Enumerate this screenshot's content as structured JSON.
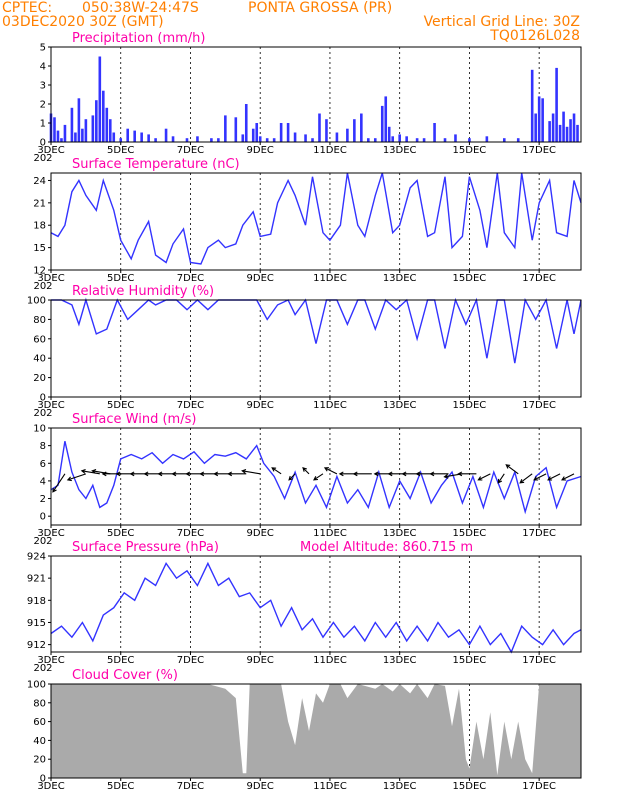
{
  "header": {
    "line1_left": "CPTEC:",
    "coords": "050:38W-24:47S",
    "location": "PONTA GROSSA (PR)",
    "date": "03DEC2020 30Z (GMT)",
    "grid_note": "Vertical Grid Line: 30Z",
    "code": "TQ0126L028"
  },
  "colors": {
    "header": "#ff7f00",
    "title": "#ff00aa",
    "series": "#3333ff",
    "cloud": "#aaaaaa"
  },
  "x_axis": {
    "start_label": "3DEC",
    "start_sub": "202",
    "ticks": [
      "5DEC",
      "7DEC",
      "9DEC",
      "11DEC",
      "13DEC",
      "15DEC",
      "17DEC"
    ],
    "tick_days": [
      5,
      7,
      9,
      11,
      13,
      15,
      17
    ],
    "range_days": [
      3,
      18.2
    ]
  },
  "chart_data": [
    {
      "type": "bar",
      "title": "Precipitation (mm/h)",
      "ylim": [
        0,
        5
      ],
      "yticks": [
        "0",
        "1",
        "2",
        "3",
        "4",
        "5"
      ],
      "x": [
        3.0,
        3.1,
        3.2,
        3.3,
        3.4,
        3.6,
        3.7,
        3.8,
        3.9,
        4.0,
        4.2,
        4.3,
        4.4,
        4.5,
        4.6,
        4.7,
        4.8,
        5.0,
        5.2,
        5.4,
        5.6,
        5.8,
        6.0,
        6.3,
        6.5,
        6.9,
        7.2,
        7.6,
        7.8,
        8.0,
        8.3,
        8.5,
        8.6,
        8.8,
        8.9,
        9.0,
        9.2,
        9.4,
        9.6,
        9.8,
        10.0,
        10.3,
        10.5,
        10.7,
        10.9,
        11.2,
        11.5,
        11.7,
        11.9,
        12.1,
        12.3,
        12.5,
        12.6,
        12.7,
        12.8,
        13.0,
        13.2,
        13.5,
        13.7,
        14.0,
        14.3,
        14.6,
        15.0,
        15.5,
        16.0,
        16.4,
        16.8,
        16.9,
        17.0,
        17.1,
        17.3,
        17.4,
        17.5,
        17.6,
        17.7,
        17.8,
        17.9,
        18.0,
        18.1
      ],
      "values": [
        1.5,
        1.3,
        0.6,
        0.2,
        0.9,
        1.8,
        0.5,
        2.3,
        0.7,
        1.2,
        1.4,
        2.2,
        4.5,
        2.7,
        1.8,
        1.2,
        0.5,
        0.2,
        0.7,
        0.6,
        0.5,
        0.4,
        0.2,
        0.7,
        0.3,
        0.2,
        0.3,
        0.2,
        0.2,
        1.4,
        1.3,
        0.4,
        2.0,
        0.7,
        1.0,
        0.3,
        0.2,
        0.2,
        1.0,
        1.0,
        0.5,
        0.4,
        0.2,
        1.5,
        1.2,
        0.5,
        0.7,
        1.2,
        1.5,
        0.2,
        0.2,
        1.9,
        2.4,
        0.8,
        0.3,
        0.4,
        0.3,
        0.2,
        0.2,
        1.0,
        0.2,
        0.4,
        0.2,
        0.3,
        0.2,
        0.2,
        3.8,
        1.5,
        2.4,
        2.3,
        1.1,
        1.5,
        3.9,
        0.9,
        1.6,
        0.8,
        1.2,
        1.5,
        0.9
      ]
    },
    {
      "type": "line",
      "title": "Surface Temperature (nC)",
      "ylim": [
        12,
        25
      ],
      "yticks": [
        "12",
        "15",
        "18",
        "21",
        "24"
      ],
      "x": [
        3.0,
        3.2,
        3.4,
        3.6,
        3.8,
        4.0,
        4.3,
        4.5,
        4.8,
        5.0,
        5.3,
        5.5,
        5.8,
        6.0,
        6.3,
        6.5,
        6.8,
        7.0,
        7.3,
        7.5,
        7.8,
        8.0,
        8.3,
        8.5,
        8.8,
        9.0,
        9.3,
        9.5,
        9.8,
        10.0,
        10.3,
        10.5,
        10.8,
        11.0,
        11.3,
        11.5,
        11.8,
        12.0,
        12.3,
        12.5,
        12.8,
        13.0,
        13.3,
        13.5,
        13.8,
        14.0,
        14.3,
        14.5,
        14.8,
        15.0,
        15.3,
        15.5,
        15.8,
        16.0,
        16.3,
        16.5,
        16.8,
        17.0,
        17.3,
        17.5,
        17.8,
        18.0,
        18.2
      ],
      "values": [
        17.0,
        16.5,
        18.0,
        22.5,
        24.0,
        22.0,
        20.0,
        24.0,
        20.0,
        16.0,
        13.5,
        16.0,
        18.5,
        14.0,
        13.0,
        15.5,
        17.5,
        13.0,
        12.8,
        15.0,
        16.0,
        15.0,
        15.5,
        18.0,
        19.8,
        16.5,
        16.8,
        21.0,
        24.0,
        22.0,
        18.0,
        24.5,
        17.0,
        16.0,
        18.0,
        25.0,
        18.0,
        16.5,
        22.0,
        25.0,
        17.0,
        18.0,
        23.0,
        24.0,
        16.5,
        17.0,
        24.5,
        15.0,
        16.5,
        24.5,
        20.0,
        15.0,
        25.0,
        17.0,
        15.0,
        25.0,
        16.0,
        21.0,
        24.0,
        17.0,
        16.5,
        24.0,
        21.0
      ]
    },
    {
      "type": "line",
      "title": "Relative Humidity (%)",
      "ylim": [
        0,
        100
      ],
      "yticks": [
        "0",
        "20",
        "40",
        "60",
        "80",
        "100"
      ],
      "x": [
        3.0,
        3.3,
        3.6,
        3.8,
        4.0,
        4.3,
        4.6,
        4.9,
        5.2,
        5.5,
        5.8,
        6.0,
        6.3,
        6.6,
        6.9,
        7.2,
        7.5,
        7.8,
        8.0,
        8.3,
        8.6,
        8.9,
        9.2,
        9.5,
        9.8,
        10.0,
        10.3,
        10.6,
        10.9,
        11.2,
        11.5,
        11.8,
        12.0,
        12.3,
        12.6,
        12.9,
        13.2,
        13.5,
        13.8,
        14.0,
        14.3,
        14.6,
        14.9,
        15.2,
        15.5,
        15.8,
        16.0,
        16.3,
        16.6,
        16.9,
        17.2,
        17.5,
        17.8,
        18.0,
        18.2
      ],
      "values": [
        100,
        100,
        95,
        75,
        100,
        65,
        70,
        100,
        80,
        90,
        100,
        95,
        100,
        100,
        90,
        100,
        90,
        100,
        100,
        100,
        100,
        100,
        80,
        95,
        100,
        85,
        100,
        55,
        100,
        100,
        75,
        100,
        100,
        70,
        100,
        90,
        100,
        60,
        100,
        100,
        50,
        100,
        75,
        100,
        40,
        100,
        100,
        35,
        100,
        80,
        100,
        50,
        100,
        65,
        100
      ]
    },
    {
      "type": "line",
      "title": "Surface Wind (m/s)",
      "ylim": [
        -1,
        10
      ],
      "yticks": [
        "0",
        "2",
        "4",
        "6",
        "8",
        "10"
      ],
      "x": [
        3.0,
        3.2,
        3.4,
        3.6,
        3.8,
        4.0,
        4.2,
        4.4,
        4.6,
        4.8,
        5.0,
        5.3,
        5.6,
        5.9,
        6.2,
        6.5,
        6.8,
        7.1,
        7.4,
        7.7,
        8.0,
        8.3,
        8.6,
        8.9,
        9.1,
        9.4,
        9.7,
        10.0,
        10.3,
        10.6,
        10.9,
        11.2,
        11.5,
        11.8,
        12.1,
        12.4,
        12.7,
        13.0,
        13.3,
        13.6,
        13.9,
        14.2,
        14.5,
        14.8,
        15.1,
        15.4,
        15.7,
        16.0,
        16.3,
        16.6,
        16.9,
        17.2,
        17.5,
        17.8,
        18.2
      ],
      "values": [
        3.0,
        3.5,
        8.5,
        5.0,
        3.0,
        2.0,
        3.5,
        1.0,
        1.5,
        3.5,
        6.5,
        7.0,
        6.5,
        7.2,
        6.0,
        7.0,
        6.5,
        7.3,
        6.0,
        7.0,
        6.8,
        7.2,
        6.5,
        8.0,
        6.0,
        4.5,
        2.0,
        5.0,
        1.5,
        3.5,
        1.0,
        4.5,
        1.5,
        3.0,
        1.0,
        5.0,
        1.0,
        4.0,
        2.0,
        5.0,
        1.5,
        3.5,
        5.0,
        1.5,
        4.5,
        1.0,
        5.0,
        2.0,
        5.0,
        0.5,
        4.5,
        5.5,
        1.0,
        4.0,
        4.5
      ],
      "vectors": {
        "x": [
          3.4,
          4.0,
          4.4,
          4.7,
          5.0,
          5.4,
          5.8,
          6.2,
          6.6,
          7.0,
          7.4,
          7.8,
          8.2,
          8.6,
          9.0,
          9.6,
          10.0,
          10.4,
          10.8,
          11.2,
          11.8,
          12.2,
          12.8,
          13.2,
          13.6,
          14.0,
          14.4,
          14.8,
          15.2,
          15.6,
          16.0,
          16.4,
          16.8,
          17.2,
          17.6,
          18.0
        ],
        "u": [
          -2,
          -3,
          -3,
          -3,
          -3,
          -3,
          -3,
          -3,
          -3,
          -3,
          -3,
          -3,
          -3,
          -3,
          -3,
          -1.5,
          -1,
          -1,
          -1.5,
          -2,
          -3,
          -3,
          -3,
          -3,
          -3,
          -3,
          -3,
          -3,
          -3,
          -2,
          -1,
          -2,
          -2,
          -2,
          -2,
          -2
        ],
        "v": [
          -3,
          -1,
          0.5,
          0.5,
          0,
          0,
          0,
          0,
          0,
          0,
          0,
          0,
          0,
          0,
          0.5,
          1,
          -1,
          1,
          -1,
          1,
          0,
          0,
          0,
          0,
          0,
          0,
          0,
          -0.5,
          0,
          -1,
          -1.5,
          1.5,
          -1.5,
          -1,
          -1,
          -1
        ]
      }
    },
    {
      "type": "line",
      "title": "Surface Pressure (hPa)",
      "subtitle": "Model Altitude: 860.715 m",
      "ylim": [
        911,
        924
      ],
      "yticks": [
        "912",
        "915",
        "918",
        "921",
        "924"
      ],
      "x": [
        3.0,
        3.3,
        3.6,
        3.9,
        4.2,
        4.5,
        4.8,
        5.1,
        5.4,
        5.7,
        6.0,
        6.3,
        6.6,
        6.9,
        7.2,
        7.5,
        7.8,
        8.1,
        8.4,
        8.7,
        9.0,
        9.3,
        9.6,
        9.9,
        10.2,
        10.5,
        10.8,
        11.1,
        11.4,
        11.7,
        12.0,
        12.3,
        12.6,
        12.9,
        13.2,
        13.5,
        13.8,
        14.1,
        14.4,
        14.7,
        15.0,
        15.3,
        15.6,
        15.9,
        16.2,
        16.5,
        16.8,
        17.1,
        17.4,
        17.7,
        18.0,
        18.2
      ],
      "values": [
        913.5,
        914.5,
        913.0,
        915.0,
        912.5,
        916.0,
        917.0,
        919.0,
        918.0,
        921.0,
        920.0,
        923.0,
        921.0,
        922.0,
        920.0,
        923.0,
        920.0,
        921.0,
        918.5,
        919.0,
        917.0,
        918.0,
        914.5,
        917.0,
        914.0,
        915.5,
        913.0,
        915.0,
        913.0,
        914.5,
        912.5,
        915.0,
        913.0,
        915.0,
        912.5,
        914.5,
        912.5,
        915.0,
        913.0,
        914.0,
        912.0,
        914.5,
        912.0,
        913.5,
        911.0,
        914.5,
        913.0,
        912.0,
        914.0,
        912.0,
        913.5,
        914.0
      ]
    },
    {
      "type": "area",
      "title": "Cloud Cover (%)",
      "ylim": [
        0,
        100
      ],
      "yticks": [
        "0",
        "20",
        "40",
        "60",
        "80",
        "100"
      ],
      "x": [
        3.0,
        3.5,
        4.0,
        4.5,
        5.0,
        5.5,
        6.0,
        6.5,
        7.0,
        7.5,
        8.0,
        8.3,
        8.5,
        8.6,
        8.7,
        9.0,
        9.3,
        9.6,
        9.8,
        10.0,
        10.2,
        10.4,
        10.6,
        10.8,
        11.0,
        11.3,
        11.5,
        11.8,
        12.0,
        12.3,
        12.5,
        12.8,
        13.0,
        13.3,
        13.5,
        13.8,
        14.0,
        14.3,
        14.5,
        14.7,
        14.9,
        15.0,
        15.2,
        15.4,
        15.6,
        15.8,
        16.0,
        16.2,
        16.4,
        16.6,
        16.8,
        17.0,
        17.3,
        17.6,
        18.0,
        18.2
      ],
      "values": [
        100,
        100,
        100,
        100,
        100,
        100,
        100,
        100,
        100,
        100,
        95,
        85,
        5,
        5,
        100,
        100,
        100,
        100,
        60,
        35,
        85,
        50,
        90,
        80,
        100,
        100,
        85,
        100,
        98,
        95,
        100,
        92,
        100,
        90,
        100,
        85,
        100,
        98,
        55,
        95,
        20,
        10,
        60,
        20,
        70,
        3,
        60,
        20,
        60,
        20,
        5,
        100,
        100,
        100,
        100,
        100
      ]
    }
  ]
}
